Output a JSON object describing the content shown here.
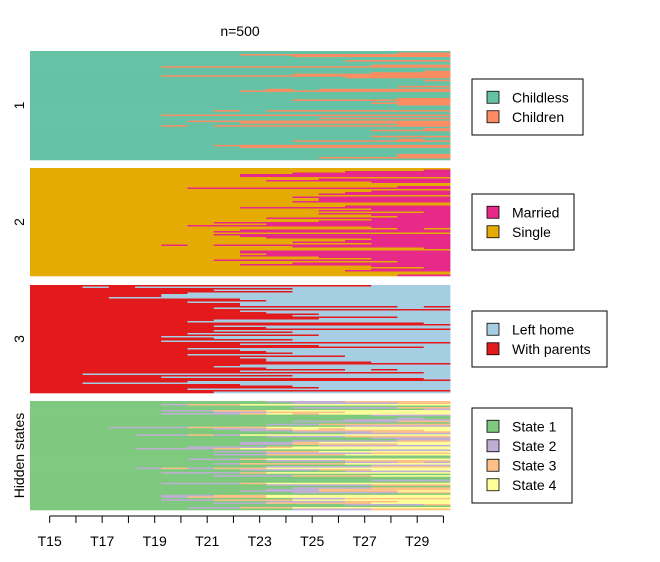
{
  "chart_data": {
    "type": "sequence-index-plot",
    "title": "n=500",
    "n": 500,
    "time_points": [
      "T15",
      "T16",
      "T17",
      "T18",
      "T19",
      "T20",
      "T21",
      "T22",
      "T23",
      "T24",
      "T25",
      "T26",
      "T27",
      "T28",
      "T29",
      "T30"
    ],
    "tick_labels": [
      "T15",
      "T17",
      "T19",
      "T21",
      "T23",
      "T25",
      "T27",
      "T29"
    ],
    "panels": [
      {
        "label": "1",
        "channel_states": [
          "Childless",
          "Children"
        ],
        "colors": {
          "Childless": "#66C2A5",
          "Children": "#FC8D62"
        },
        "share_second_state_by_time": [
          0.0,
          0.0,
          0.0,
          0.0,
          0.0,
          0.02,
          0.04,
          0.07,
          0.1,
          0.14,
          0.18,
          0.23,
          0.29,
          0.35,
          0.42,
          0.48
        ]
      },
      {
        "label": "2",
        "channel_states": [
          "Married",
          "Single"
        ],
        "colors": {
          "Married": "#E7298A",
          "Single": "#E6AB02"
        },
        "share_first_state_by_time": [
          0.0,
          0.0,
          0.0,
          0.0,
          0.0,
          0.04,
          0.11,
          0.19,
          0.27,
          0.36,
          0.45,
          0.53,
          0.61,
          0.68,
          0.74,
          0.8
        ]
      },
      {
        "label": "3",
        "channel_states": [
          "Left home",
          "With parents"
        ],
        "colors": {
          "Left home": "#A6CEE3",
          "With parents": "#E31A1C"
        },
        "share_first_state_by_time": [
          0.0,
          0.0,
          0.03,
          0.06,
          0.1,
          0.17,
          0.27,
          0.38,
          0.48,
          0.57,
          0.64,
          0.7,
          0.75,
          0.79,
          0.83,
          0.86
        ]
      },
      {
        "label": "Hidden states",
        "channel_states": [
          "State 1",
          "State 2",
          "State 3",
          "State 4"
        ],
        "colors": {
          "State 1": "#7FC97F",
          "State 2": "#BEAED4",
          "State 3": "#FDC086",
          "State 4": "#FFFF99"
        },
        "shares_by_time": [
          [
            1.0,
            0.0,
            0.0,
            0.0
          ],
          [
            1.0,
            0.0,
            0.0,
            0.0
          ],
          [
            0.99,
            0.01,
            0.0,
            0.0
          ],
          [
            0.97,
            0.03,
            0.0,
            0.0
          ],
          [
            0.94,
            0.06,
            0.0,
            0.0
          ],
          [
            0.88,
            0.1,
            0.02,
            0.0
          ],
          [
            0.8,
            0.15,
            0.05,
            0.0
          ],
          [
            0.7,
            0.2,
            0.08,
            0.02
          ],
          [
            0.6,
            0.23,
            0.12,
            0.05
          ],
          [
            0.5,
            0.24,
            0.16,
            0.1
          ],
          [
            0.42,
            0.24,
            0.19,
            0.15
          ],
          [
            0.35,
            0.22,
            0.22,
            0.21
          ],
          [
            0.3,
            0.2,
            0.23,
            0.27
          ],
          [
            0.25,
            0.18,
            0.24,
            0.33
          ],
          [
            0.22,
            0.16,
            0.24,
            0.38
          ],
          [
            0.2,
            0.15,
            0.24,
            0.41
          ]
        ]
      }
    ],
    "legend_placement": "right"
  }
}
